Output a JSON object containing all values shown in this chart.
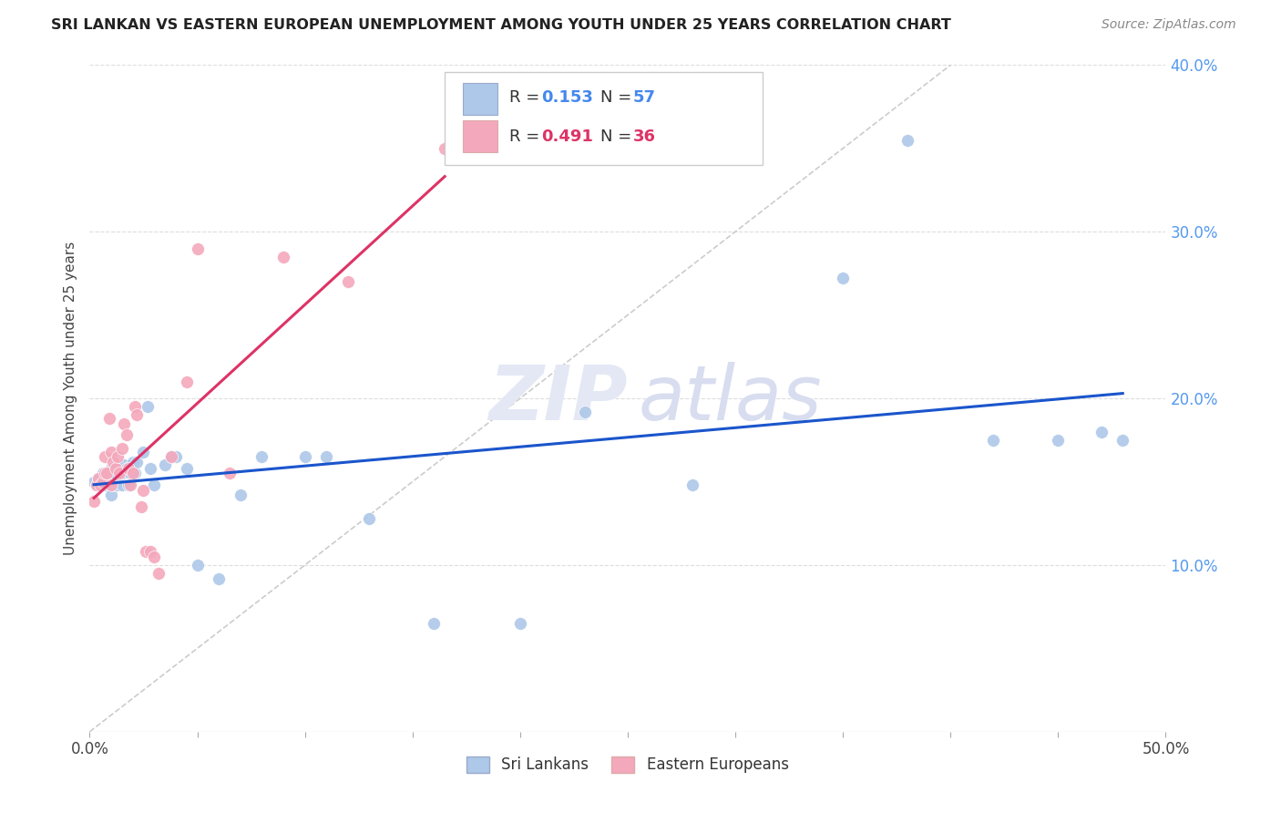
{
  "title": "SRI LANKAN VS EASTERN EUROPEAN UNEMPLOYMENT AMONG YOUTH UNDER 25 YEARS CORRELATION CHART",
  "source": "Source: ZipAtlas.com",
  "ylabel": "Unemployment Among Youth under 25 years",
  "xlim": [
    0.0,
    0.5
  ],
  "ylim": [
    0.0,
    0.4
  ],
  "ytick_positions": [
    0.1,
    0.2,
    0.3,
    0.4
  ],
  "ytick_labels": [
    "10.0%",
    "20.0%",
    "30.0%",
    "40.0%"
  ],
  "xtick_positions": [
    0.0,
    0.05,
    0.1,
    0.15,
    0.2,
    0.25,
    0.3,
    0.35,
    0.4,
    0.45,
    0.5
  ],
  "xtick_labels_show": {
    "0": "0.0%",
    "10": "50.0%"
  },
  "sri_lankans_R": 0.153,
  "sri_lankans_N": 57,
  "eastern_europeans_R": 0.491,
  "eastern_europeans_N": 36,
  "sl_color": "#adc8e8",
  "ee_color": "#f4a8bc",
  "sl_line_color": "#1a55cc",
  "ee_line_color": "#dd3366",
  "diag_color": "#cccccc",
  "sl_x": [
    0.002,
    0.003,
    0.004,
    0.005,
    0.006,
    0.006,
    0.007,
    0.007,
    0.008,
    0.008,
    0.009,
    0.009,
    0.01,
    0.01,
    0.01,
    0.011,
    0.011,
    0.012,
    0.012,
    0.013,
    0.013,
    0.014,
    0.014,
    0.015,
    0.015,
    0.016,
    0.017,
    0.018,
    0.019,
    0.02,
    0.021,
    0.022,
    0.025,
    0.027,
    0.028,
    0.03,
    0.035,
    0.038,
    0.04,
    0.045,
    0.05,
    0.06,
    0.07,
    0.08,
    0.1,
    0.11,
    0.13,
    0.16,
    0.2,
    0.23,
    0.28,
    0.35,
    0.38,
    0.42,
    0.45,
    0.47,
    0.48
  ],
  "sl_y": [
    0.15,
    0.148,
    0.152,
    0.148,
    0.15,
    0.155,
    0.148,
    0.152,
    0.15,
    0.155,
    0.148,
    0.155,
    0.142,
    0.15,
    0.158,
    0.148,
    0.158,
    0.152,
    0.158,
    0.148,
    0.158,
    0.15,
    0.158,
    0.148,
    0.155,
    0.16,
    0.158,
    0.148,
    0.155,
    0.162,
    0.155,
    0.162,
    0.168,
    0.195,
    0.158,
    0.148,
    0.16,
    0.165,
    0.165,
    0.158,
    0.1,
    0.092,
    0.142,
    0.165,
    0.165,
    0.165,
    0.128,
    0.065,
    0.065,
    0.192,
    0.148,
    0.272,
    0.355,
    0.175,
    0.175,
    0.18,
    0.175
  ],
  "ee_x": [
    0.002,
    0.003,
    0.004,
    0.005,
    0.006,
    0.007,
    0.007,
    0.008,
    0.009,
    0.01,
    0.01,
    0.011,
    0.012,
    0.013,
    0.014,
    0.015,
    0.016,
    0.017,
    0.018,
    0.019,
    0.02,
    0.021,
    0.022,
    0.024,
    0.025,
    0.026,
    0.028,
    0.03,
    0.032,
    0.038,
    0.045,
    0.05,
    0.065,
    0.09,
    0.12,
    0.165
  ],
  "ee_y": [
    0.138,
    0.148,
    0.152,
    0.148,
    0.15,
    0.155,
    0.165,
    0.155,
    0.188,
    0.148,
    0.168,
    0.162,
    0.158,
    0.165,
    0.155,
    0.17,
    0.185,
    0.178,
    0.158,
    0.148,
    0.155,
    0.195,
    0.19,
    0.135,
    0.145,
    0.108,
    0.108,
    0.105,
    0.095,
    0.165,
    0.21,
    0.29,
    0.155,
    0.285,
    0.27,
    0.35
  ]
}
